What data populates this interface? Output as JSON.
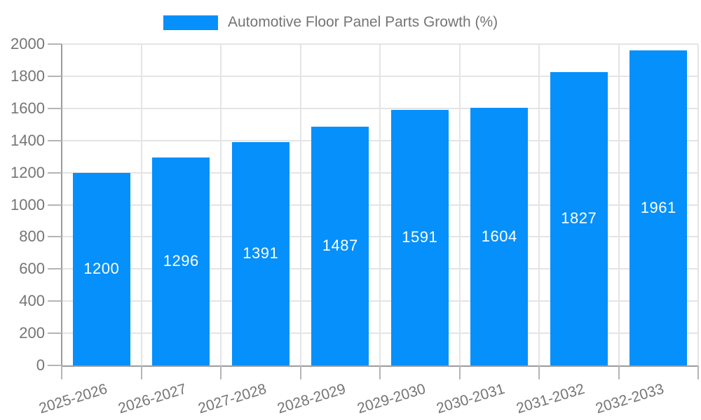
{
  "chart_data": {
    "type": "bar",
    "title": "Automotive Floor Panel Parts Growth (%)",
    "categories": [
      "2025-2026",
      "2026-2027",
      "2027-2028",
      "2028-2029",
      "2029-2030",
      "2030-2031",
      "2031-2032",
      "2032-2033"
    ],
    "values": [
      1200,
      1296,
      1391,
      1487,
      1591,
      1604,
      1827,
      1961
    ],
    "xlabel": "",
    "ylabel": "",
    "ylim": [
      0,
      2000
    ],
    "ytick_step": 200,
    "yticks": [
      0,
      200,
      400,
      600,
      800,
      1000,
      1200,
      1400,
      1600,
      1800,
      2000
    ],
    "grid": true,
    "legend_position": "top",
    "value_label_position": "inside-center",
    "x_label_rotation_deg": -17,
    "colors": {
      "bar": "#0590FB",
      "value_label": "#FFFFFF",
      "axis_text": "#757575",
      "grid_line": "#E4E4E4",
      "axis_line": "#9B9B9B",
      "tick_line": "#B5B5B5",
      "background": "#FFFFFF"
    }
  }
}
